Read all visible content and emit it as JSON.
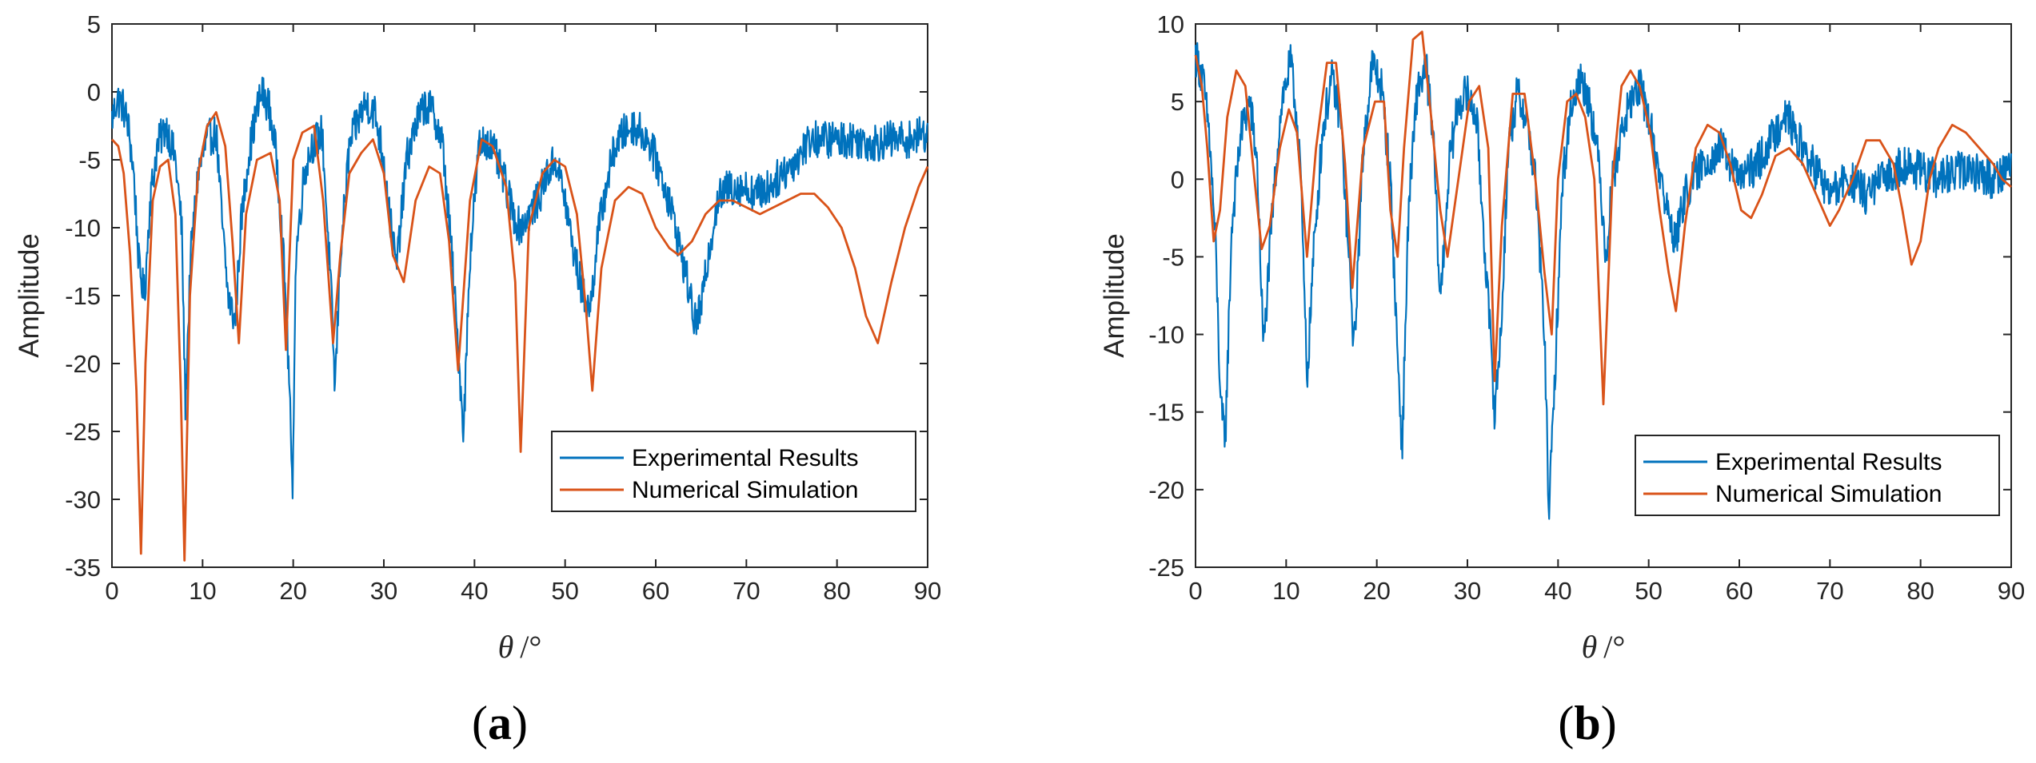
{
  "colors": {
    "experimental": "#0072BD",
    "simulation": "#D95319",
    "axis": "#262626"
  },
  "chart_data": [
    {
      "type": "line",
      "panel_label": "a",
      "xlabel": "θ",
      "xlabel_unit": "/°",
      "ylabel": "Amplitude",
      "xlim": [
        0,
        90
      ],
      "ylim": [
        -35,
        5
      ],
      "xticks": [
        0,
        10,
        20,
        30,
        40,
        50,
        60,
        70,
        80,
        90
      ],
      "yticks": [
        5,
        0,
        -5,
        -10,
        -15,
        -20,
        -25,
        -30,
        -35
      ],
      "legend_position": "bottom-right",
      "series": [
        {
          "name": "Experimental Results",
          "noise": 1.4,
          "x": [
            0,
            0.6,
            1.2,
            1.8,
            2.4,
            3.0,
            3.6,
            4.2,
            5.0,
            6.0,
            7.0,
            7.7,
            8.1,
            8.7,
            9.5,
            10.5,
            11.5,
            12.2,
            12.8,
            13.6,
            14.2,
            15.0,
            15.8,
            16.5,
            17.3,
            18.2,
            19.0,
            19.6,
            19.9,
            20.3,
            21.2,
            22.0,
            23.2,
            24.2,
            24.6,
            25.2,
            26.2,
            27.2,
            28.0,
            29.0,
            30.0,
            30.8,
            31.4,
            32.5,
            33.5,
            34.5,
            35.5,
            36.5,
            37.5,
            38.3,
            38.8,
            39.5,
            40.5,
            41.5,
            42.5,
            43.5,
            44.3,
            45.0,
            46.0,
            47.0,
            48.0,
            49.0,
            50.0,
            51.0,
            52.0,
            52.8,
            53.5,
            54.5,
            55.5,
            56.5,
            57.5,
            58.5,
            59.5,
            60.5,
            61.5,
            62.5,
            63.5,
            64.3,
            65.0,
            65.8,
            66.8,
            68.0,
            69.5,
            71.0,
            72.5,
            74.0,
            75.5,
            77.0,
            78.5,
            80.0,
            82.0,
            84.0,
            86.0,
            88.0,
            90.0
          ],
          "y": [
            -2,
            -0.5,
            -1,
            -2.5,
            -6,
            -13,
            -15,
            -8,
            -4,
            -2.5,
            -5,
            -10,
            -23,
            -12,
            -6,
            -3.5,
            -3,
            -10,
            -15,
            -17,
            -10,
            -5,
            -2,
            0,
            -1,
            -5,
            -13,
            -22,
            -30,
            -12,
            -6,
            -4,
            -3,
            -15,
            -22,
            -12,
            -4,
            -2,
            -0.8,
            -1.5,
            -5,
            -10,
            -13,
            -5,
            -2.5,
            -1,
            -1.5,
            -4,
            -12,
            -20,
            -25,
            -12,
            -4,
            -3.5,
            -5,
            -7,
            -9,
            -10,
            -9,
            -8,
            -6,
            -5,
            -8,
            -12,
            -15,
            -16,
            -11,
            -7,
            -4,
            -3,
            -2.5,
            -3,
            -4,
            -6,
            -8,
            -11,
            -14,
            -17,
            -16,
            -12,
            -8,
            -7,
            -7,
            -7.5,
            -7,
            -6,
            -5,
            -3.5,
            -3.5,
            -3.5,
            -3.5,
            -3.8,
            -3.5,
            -3.5,
            -3
          ]
        },
        {
          "name": "Numerical Simulation",
          "noise": 0,
          "x": [
            0,
            0.7,
            1.3,
            2.0,
            2.7,
            3.2,
            3.7,
            4.5,
            5.3,
            6.2,
            7.0,
            7.6,
            8.0,
            8.6,
            9.5,
            10.5,
            11.5,
            12.5,
            13.3,
            14.0,
            14.8,
            16.0,
            17.5,
            18.5,
            19.2,
            20.0,
            21.0,
            22.3,
            23.3,
            24.4,
            25.2,
            26.2,
            27.5,
            28.8,
            30.0,
            31.0,
            32.2,
            33.5,
            35.0,
            36.2,
            37.2,
            38.2,
            39.5,
            40.8,
            42.0,
            43.5,
            44.5,
            45.1,
            46.0,
            47.5,
            48.8,
            50.0,
            51.3,
            52.3,
            53.0,
            54.0,
            55.5,
            57.0,
            58.5,
            60.0,
            61.5,
            62.5,
            64.0,
            65.5,
            67.0,
            68.5,
            70.0,
            71.5,
            73.0,
            74.5,
            76.0,
            77.5,
            79.0,
            80.5,
            82.0,
            83.2,
            84.5,
            86.0,
            87.5,
            89.0,
            90.0
          ],
          "y": [
            -3.5,
            -4,
            -6,
            -12,
            -22,
            -34,
            -20,
            -8,
            -5.5,
            -5,
            -9,
            -22,
            -34.5,
            -15,
            -6,
            -2.5,
            -1.5,
            -4,
            -11,
            -18.5,
            -9,
            -5,
            -4.5,
            -8,
            -19,
            -5,
            -3,
            -2.5,
            -8,
            -18.5,
            -12,
            -6,
            -4.5,
            -3.5,
            -6,
            -12,
            -14,
            -8,
            -5.5,
            -6,
            -11,
            -20.5,
            -8,
            -3.5,
            -4,
            -7,
            -14,
            -26.5,
            -10,
            -6,
            -5,
            -5.5,
            -9,
            -16,
            -22,
            -13,
            -8,
            -7,
            -7.5,
            -10,
            -11.5,
            -12,
            -11,
            -9,
            -8,
            -8,
            -8.5,
            -9,
            -8.5,
            -8,
            -7.5,
            -7.5,
            -8.5,
            -10,
            -13,
            -16.5,
            -18.5,
            -14,
            -10,
            -7,
            -5.5
          ]
        }
      ]
    },
    {
      "type": "line",
      "panel_label": "b",
      "xlabel": "θ",
      "xlabel_unit": "/°",
      "ylabel": "Amplitude",
      "xlim": [
        0,
        90
      ],
      "ylim": [
        -25,
        10
      ],
      "xticks": [
        0,
        10,
        20,
        30,
        40,
        50,
        60,
        70,
        80,
        90
      ],
      "yticks": [
        10,
        5,
        0,
        -5,
        -10,
        -15,
        -20,
        -25
      ],
      "legend_position": "bottom-right",
      "series": [
        {
          "name": "Experimental Results",
          "noise": 1.3,
          "x": [
            0,
            0.8,
            1.5,
            2.2,
            2.8,
            3.3,
            4.0,
            5.0,
            6.0,
            6.8,
            7.5,
            8.5,
            9.5,
            10.5,
            11.5,
            12.3,
            13.0,
            14.0,
            15.0,
            16.0,
            16.8,
            17.5,
            18.5,
            19.5,
            20.5,
            21.5,
            22.2,
            22.8,
            23.5,
            24.5,
            25.5,
            26.3,
            27.0,
            28.0,
            29.0,
            30.0,
            31.0,
            32.3,
            33.0,
            33.7,
            34.5,
            35.5,
            36.5,
            37.5,
            38.5,
            39.0,
            39.5,
            40.5,
            41.5,
            42.5,
            43.5,
            44.5,
            45.3,
            46.0,
            47.0,
            48.0,
            49.0,
            50.0,
            51.0,
            52.0,
            53.0,
            54.0,
            56.0,
            58.0,
            60.0,
            62.0,
            64.0,
            65.0,
            66.0,
            68.0,
            70.0,
            72.0,
            74.0,
            76.0,
            78.0,
            80.0,
            82.0,
            84.0,
            86.0,
            88.0,
            90.0
          ],
          "y": [
            8,
            6.5,
            3,
            -4,
            -15,
            -16.5,
            -3,
            3,
            5,
            1,
            -11,
            -2,
            5,
            7.5,
            2,
            -13,
            -5,
            3,
            6.5,
            4,
            -4,
            -11,
            2,
            7.5,
            6,
            0,
            -10,
            -17.5,
            -2,
            6,
            7,
            2,
            -8,
            1,
            5,
            5.5,
            4,
            -8,
            -15,
            -10,
            2,
            5.5,
            4,
            0,
            -10,
            -21.5,
            -15,
            0,
            5,
            6.5,
            5,
            1,
            -5,
            0,
            3,
            5,
            6,
            4,
            1,
            -2,
            -4,
            -1,
            1,
            2,
            0,
            1,
            3,
            4.5,
            3,
            1,
            -1,
            0,
            -1,
            0,
            1,
            0.5,
            0,
            0.5,
            0.5,
            0,
            1
          ]
        },
        {
          "name": "Numerical Simulation",
          "noise": 0,
          "x": [
            0,
            0.7,
            1.3,
            2.0,
            2.7,
            3.5,
            4.5,
            5.5,
            6.5,
            7.3,
            8.2,
            9.3,
            10.3,
            11.2,
            12.3,
            13.3,
            14.5,
            15.5,
            16.5,
            17.3,
            18.5,
            19.8,
            20.8,
            21.5,
            22.3,
            23.0,
            24.0,
            25.0,
            26.0,
            27.0,
            27.8,
            29.0,
            30.2,
            31.3,
            32.3,
            33.0,
            33.8,
            35.0,
            36.3,
            37.5,
            38.5,
            39.3,
            40.0,
            41.0,
            42.0,
            43.0,
            44.0,
            45.0,
            46.0,
            47.0,
            48.0,
            49.0,
            50.2,
            51.2,
            52.2,
            53.0,
            54.0,
            55.2,
            56.5,
            57.8,
            59.0,
            60.2,
            61.3,
            62.5,
            64.0,
            65.5,
            67.0,
            68.5,
            70.0,
            71.0,
            72.5,
            74.0,
            75.5,
            77.0,
            78.0,
            79.0,
            80.0,
            81.0,
            82.0,
            83.5,
            85.0,
            86.5,
            88.0,
            89.0,
            90.0
          ],
          "y": [
            8,
            6,
            2,
            -4,
            -2,
            4,
            7,
            6,
            0,
            -4.5,
            -3,
            2,
            4.5,
            3,
            -5,
            2,
            7.5,
            7.5,
            1,
            -7,
            2,
            5,
            5,
            -2,
            -5,
            2,
            9,
            9.5,
            4,
            -2,
            -5,
            0,
            5,
            6,
            2,
            -13,
            -3,
            5.5,
            5.5,
            0,
            -6,
            -10,
            0,
            5,
            5.5,
            4,
            0,
            -14.5,
            0,
            6,
            7,
            6,
            3,
            -2,
            -6,
            -8.5,
            -3,
            2,
            3.5,
            3,
            1,
            -2,
            -2.5,
            -1,
            1.5,
            2,
            1,
            -1,
            -3,
            -2,
            0,
            2.5,
            2.5,
            1,
            -2,
            -5.5,
            -4,
            0,
            2,
            3.5,
            3,
            2,
            1,
            0,
            -0.5
          ]
        }
      ]
    }
  ]
}
